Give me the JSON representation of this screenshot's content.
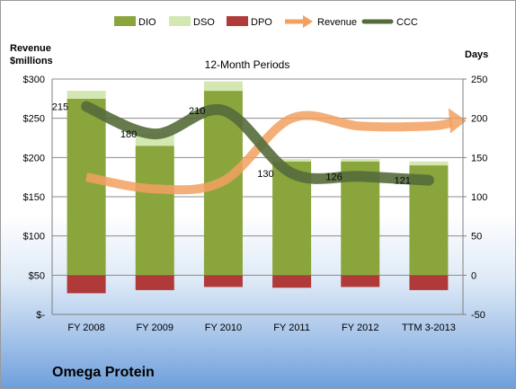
{
  "company": "Omega Protein",
  "chart_data": {
    "type": "bar",
    "title": "12-Month Periods",
    "categories": [
      "FY 2008",
      "FY 2009",
      "FY 2010",
      "FY 2011",
      "FY 2012",
      "TTM 3-2013"
    ],
    "left_axis": {
      "label_line1": "Revenue",
      "label_line2": "$millions",
      "ticks": [
        "$-",
        "$50",
        "$100",
        "$150",
        "$200",
        "$250",
        "$300"
      ],
      "range": [
        0,
        300
      ]
    },
    "right_axis": {
      "label": "Days",
      "ticks": [
        "-50",
        "0",
        "50",
        "100",
        "150",
        "200",
        "250"
      ],
      "range": [
        -50,
        250
      ]
    },
    "legend_position": "top",
    "series": [
      {
        "name": "DIO",
        "kind": "stacked-bar",
        "axis": "days",
        "color": "#8aa53c",
        "values": [
          225,
          165,
          235,
          145,
          145,
          140
        ]
      },
      {
        "name": "DSO",
        "kind": "stacked-bar",
        "axis": "days",
        "color": "#d3e7b3",
        "values": [
          10,
          15,
          12,
          3,
          3,
          5
        ]
      },
      {
        "name": "DPO",
        "kind": "negative-bar",
        "axis": "days",
        "color": "#b03a3a",
        "values": [
          -23,
          -19,
          -15,
          -16,
          -15,
          -19
        ]
      },
      {
        "name": "Revenue",
        "kind": "arrow-line",
        "axis": "revenue",
        "color": "#f2a060",
        "values": [
          175,
          160,
          170,
          250,
          240,
          240
        ]
      },
      {
        "name": "CCC",
        "kind": "line",
        "axis": "days",
        "color": "#556b3b",
        "values": [
          215,
          180,
          210,
          130,
          126,
          121
        ],
        "labels": [
          "215",
          "180",
          "210",
          "130",
          "126",
          "121"
        ]
      }
    ],
    "grid": true
  }
}
